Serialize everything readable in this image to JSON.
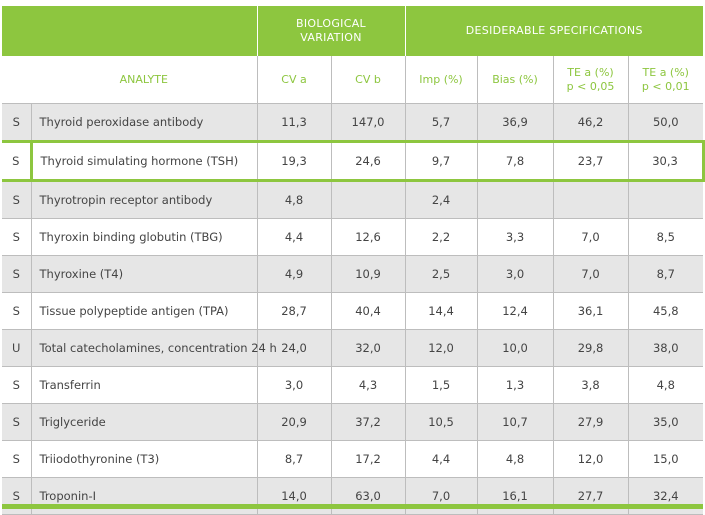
{
  "header": {
    "group_biological": "BIOLOGICAL VARIATION",
    "group_desiderable": "DESIDERABLE SPECIFICATIONS",
    "analyte": "ANALYTE",
    "cv_a": "CV a",
    "cv_b": "CV b",
    "imp": "Imp (%)",
    "bias": "Bias (%)",
    "te_a_005_line1": "TE a (%)",
    "te_a_005_line2": "p < 0,05",
    "te_a_001_line1": "TE a (%)",
    "te_a_001_line2": "p < 0,01"
  },
  "colors": {
    "accent": "#8dc63f",
    "row_shade": "#e6e6e6"
  },
  "highlighted_row": "Thyroid simulating hormone (TSH)",
  "rows": [
    {
      "code": "S",
      "analyte": "Thyroid peroxidase antibody",
      "cv_a": "11,3",
      "cv_b": "147,0",
      "imp": "5,7",
      "bias": "36,9",
      "te_005": "46,2",
      "te_001": "50,0"
    },
    {
      "code": "S",
      "analyte": "Thyroid simulating hormone (TSH)",
      "cv_a": "19,3",
      "cv_b": "24,6",
      "imp": "9,7",
      "bias": "7,8",
      "te_005": "23,7",
      "te_001": "30,3"
    },
    {
      "code": "S",
      "analyte": "Thyrotropin receptor antibody",
      "cv_a": "4,8",
      "cv_b": "",
      "imp": "2,4",
      "bias": "",
      "te_005": "",
      "te_001": ""
    },
    {
      "code": "S",
      "analyte": "Thyroxin binding globutin (TBG)",
      "cv_a": "4,4",
      "cv_b": "12,6",
      "imp": "2,2",
      "bias": "3,3",
      "te_005": "7,0",
      "te_001": "8,5"
    },
    {
      "code": "S",
      "analyte": "Thyroxine (T4)",
      "cv_a": "4,9",
      "cv_b": "10,9",
      "imp": "2,5",
      "bias": "3,0",
      "te_005": "7,0",
      "te_001": "8,7"
    },
    {
      "code": "S",
      "analyte": "Tissue polypeptide antigen (TPA)",
      "cv_a": "28,7",
      "cv_b": "40,4",
      "imp": "14,4",
      "bias": "12,4",
      "te_005": "36,1",
      "te_001": "45,8"
    },
    {
      "code": "U",
      "analyte": "Total catecholamines, concentration 24 h",
      "cv_a": "24,0",
      "cv_b": "32,0",
      "imp": "12,0",
      "bias": "10,0",
      "te_005": "29,8",
      "te_001": "38,0"
    },
    {
      "code": "S",
      "analyte": "Transferrin",
      "cv_a": "3,0",
      "cv_b": "4,3",
      "imp": "1,5",
      "bias": "1,3",
      "te_005": "3,8",
      "te_001": "4,8"
    },
    {
      "code": "S",
      "analyte": "Triglyceride",
      "cv_a": "20,9",
      "cv_b": "37,2",
      "imp": "10,5",
      "bias": "10,7",
      "te_005": "27,9",
      "te_001": "35,0"
    },
    {
      "code": "S",
      "analyte": "Triiodothyronine (T3)",
      "cv_a": "8,7",
      "cv_b": "17,2",
      "imp": "4,4",
      "bias": "4,8",
      "te_005": "12,0",
      "te_001": "15,0"
    },
    {
      "code": "S",
      "analyte": "Troponin-I",
      "cv_a": "14,0",
      "cv_b": "63,0",
      "imp": "7,0",
      "bias": "16,1",
      "te_005": "27,7",
      "te_001": "32,4"
    }
  ]
}
